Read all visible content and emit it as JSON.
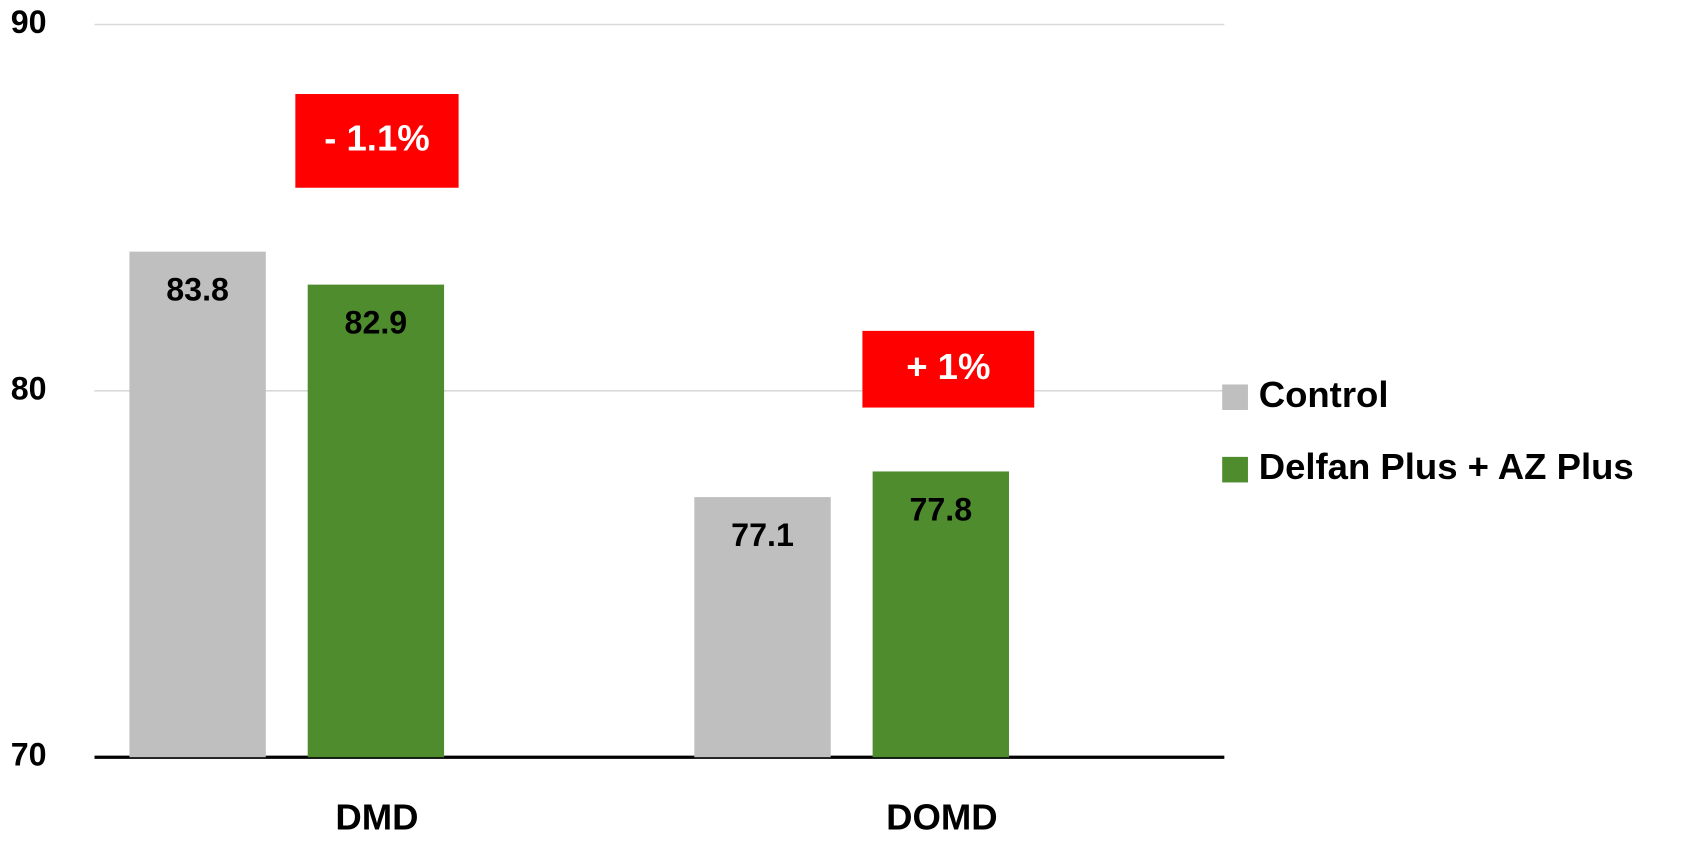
{
  "chart_data": {
    "type": "bar",
    "categories": [
      "DMD",
      "DOMD"
    ],
    "series": [
      {
        "name": "Control",
        "color": "#bfbfbf",
        "values": [
          83.8,
          77.1
        ]
      },
      {
        "name": "Delfan Plus + AZ Plus",
        "color": "#4e8c2e",
        "values": [
          82.9,
          77.8
        ]
      }
    ],
    "annotations": [
      {
        "text": "- 1.1%",
        "color": "#ff0000"
      },
      {
        "text": "+ 1%",
        "color": "#ff0000"
      }
    ],
    "ylim": [
      70,
      90
    ],
    "yticks": [
      70,
      80,
      90
    ],
    "grid": true,
    "legend": "right"
  }
}
